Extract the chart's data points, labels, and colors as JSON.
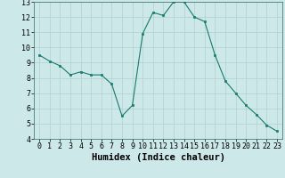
{
  "x": [
    0,
    1,
    2,
    3,
    4,
    5,
    6,
    7,
    8,
    9,
    10,
    11,
    12,
    13,
    14,
    15,
    16,
    17,
    18,
    19,
    20,
    21,
    22,
    23
  ],
  "y": [
    9.5,
    9.1,
    8.8,
    8.2,
    8.4,
    8.2,
    8.2,
    7.6,
    5.5,
    6.2,
    10.9,
    12.3,
    12.1,
    13.0,
    13.0,
    12.0,
    11.7,
    9.5,
    7.8,
    7.0,
    6.2,
    5.6,
    4.9,
    4.5
  ],
  "xlabel": "Humidex (Indice chaleur)",
  "xlim": [
    -0.5,
    23.5
  ],
  "ylim": [
    4,
    13
  ],
  "yticks": [
    4,
    5,
    6,
    7,
    8,
    9,
    10,
    11,
    12,
    13
  ],
  "xticks": [
    0,
    1,
    2,
    3,
    4,
    5,
    6,
    7,
    8,
    9,
    10,
    11,
    12,
    13,
    14,
    15,
    16,
    17,
    18,
    19,
    20,
    21,
    22,
    23
  ],
  "line_color": "#1a7a6e",
  "marker_color": "#1a7a6e",
  "bg_color": "#cce8e8",
  "grid_color": "#b0d0d0",
  "tick_label_fontsize": 6,
  "xlabel_fontsize": 7.5
}
